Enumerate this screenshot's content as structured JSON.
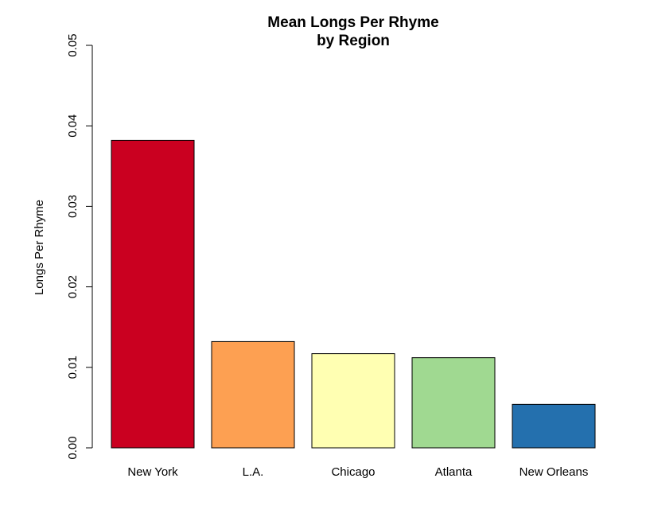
{
  "chart_data": {
    "type": "bar",
    "title": [
      "Mean Longs Per Rhyme",
      "by Region"
    ],
    "xlabel": "",
    "ylabel": "Longs Per Rhyme",
    "ylim": [
      0,
      0.05
    ],
    "yticks": [
      0.0,
      0.01,
      0.02,
      0.03,
      0.04,
      0.05
    ],
    "ytick_labels": [
      "0.00",
      "0.01",
      "0.02",
      "0.03",
      "0.04",
      "0.05"
    ],
    "categories": [
      "New York",
      "L.A.",
      "Chicago",
      "Atlanta",
      "New Orleans"
    ],
    "values": [
      0.0382,
      0.0132,
      0.0117,
      0.0112,
      0.0054
    ],
    "colors": [
      "#CA0020",
      "#FDA052",
      "#FFFFB2",
      "#A0D991",
      "#2470AE"
    ],
    "grid": false
  }
}
